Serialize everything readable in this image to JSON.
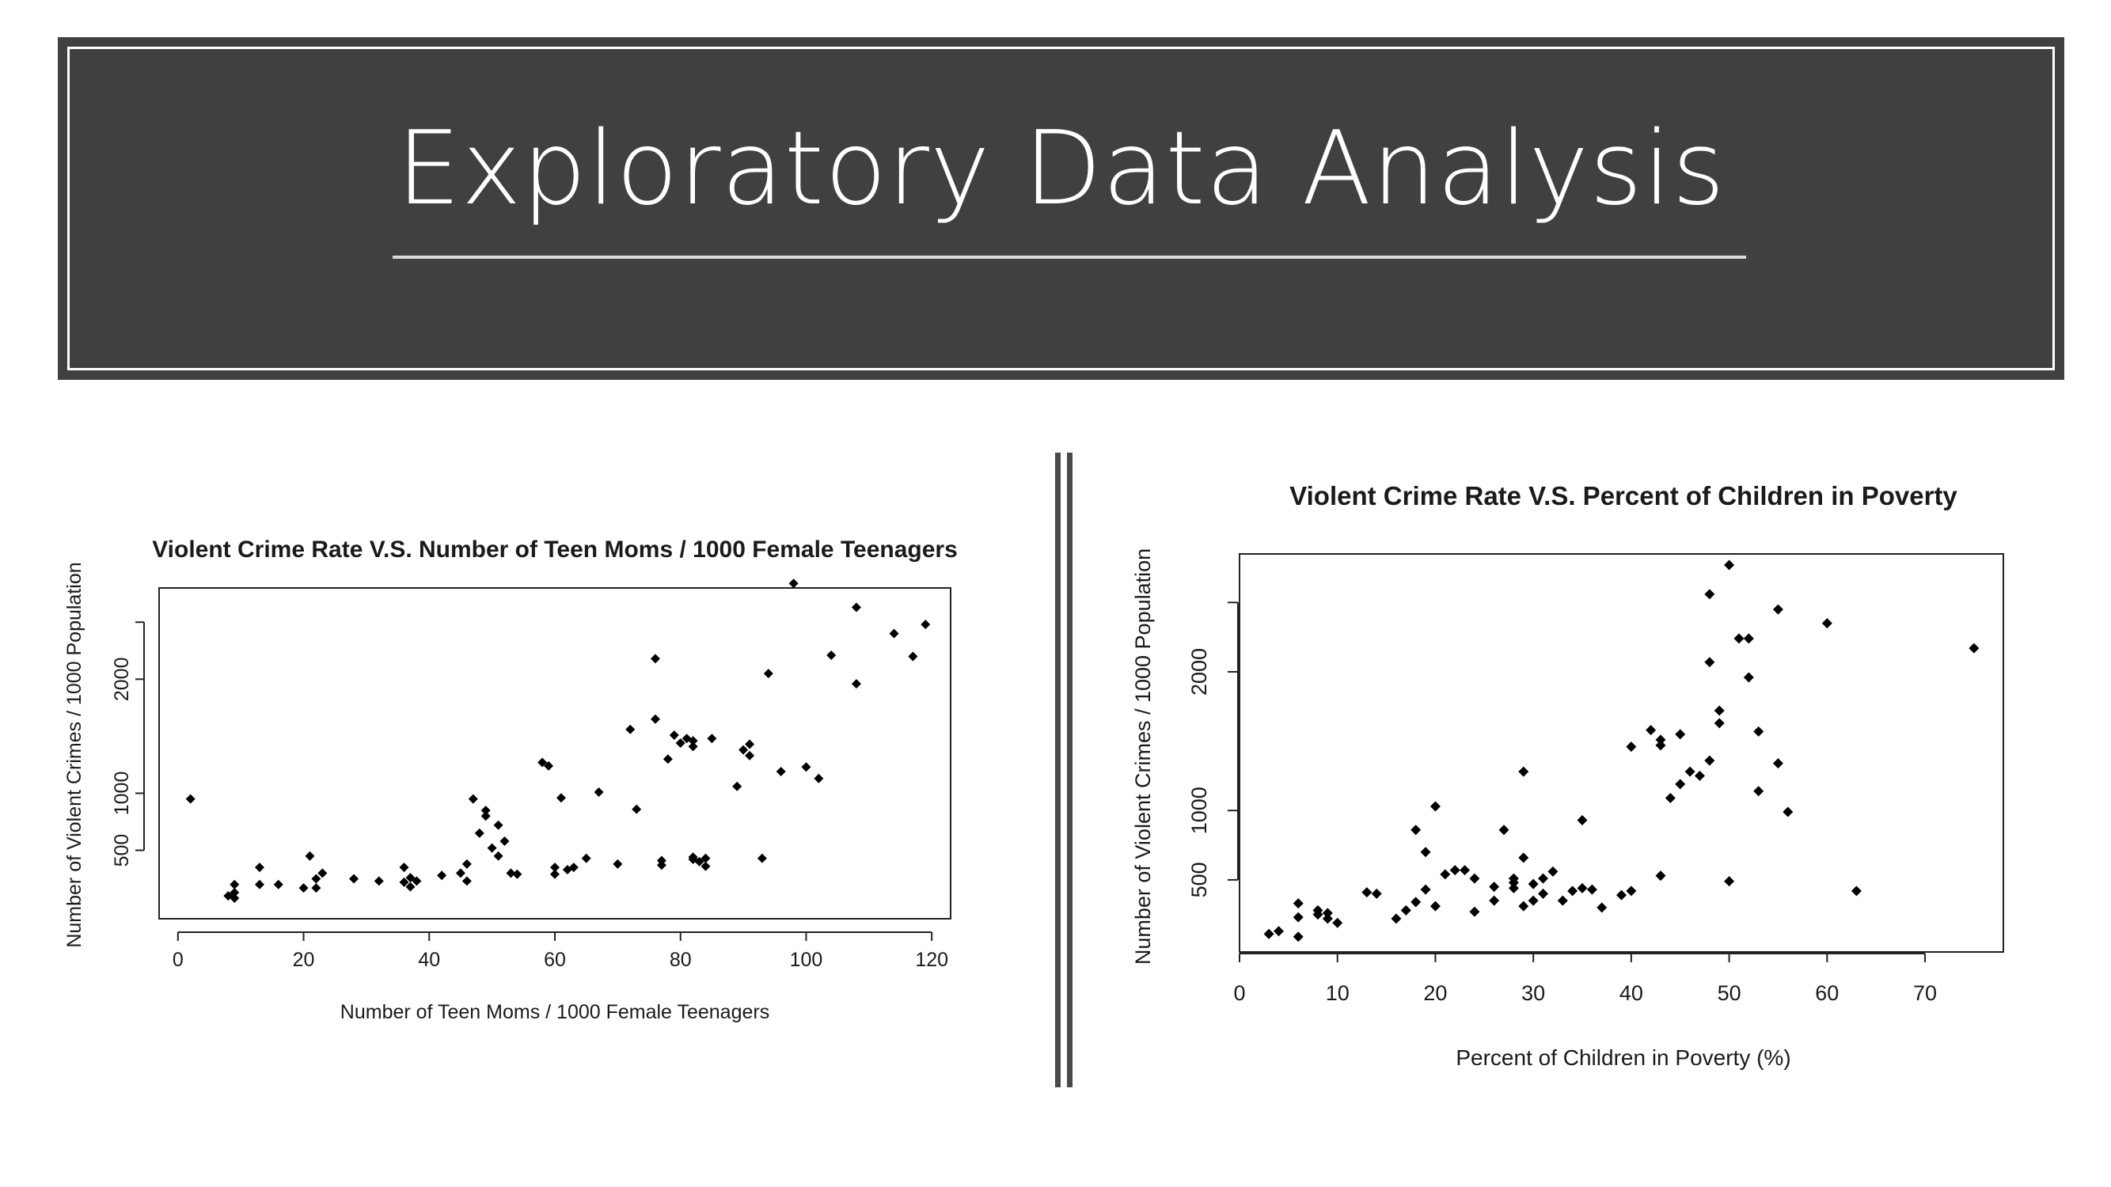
{
  "slide": {
    "title": "Exploratory Data Analysis"
  },
  "colors": {
    "banner": "#404040",
    "banner_frame": "#ffffff",
    "rule": "#d9d9d9",
    "points": "#000000"
  },
  "chart_data": [
    {
      "type": "scatter",
      "title": "Violent Crime Rate V.S. Number of Teen Moms / 1000 Female Teenagers",
      "xlabel": "Number of Teen Moms / 1000 Female Teenagers",
      "ylabel": "Number of Violent Crimes / 1000 Population",
      "xlim": [
        -3,
        123
      ],
      "ylim": [
        -100,
        2800
      ],
      "xticks": [
        0,
        20,
        40,
        60,
        80,
        100,
        120
      ],
      "yticks": [
        500,
        1000,
        2000
      ],
      "yticks_unlabeled": [
        2500
      ],
      "grid": false,
      "points": [
        [
          2,
          950
        ],
        [
          8,
          100
        ],
        [
          9,
          130
        ],
        [
          9,
          80
        ],
        [
          9,
          200
        ],
        [
          13,
          200
        ],
        [
          13,
          350
        ],
        [
          16,
          200
        ],
        [
          20,
          170
        ],
        [
          21,
          450
        ],
        [
          22,
          250
        ],
        [
          22,
          170
        ],
        [
          23,
          300
        ],
        [
          28,
          250
        ],
        [
          32,
          230
        ],
        [
          36,
          350
        ],
        [
          36,
          220
        ],
        [
          37,
          180
        ],
        [
          37,
          260
        ],
        [
          38,
          230
        ],
        [
          42,
          280
        ],
        [
          45,
          300
        ],
        [
          46,
          230
        ],
        [
          46,
          380
        ],
        [
          47,
          950
        ],
        [
          48,
          650
        ],
        [
          49,
          800
        ],
        [
          49,
          850
        ],
        [
          50,
          520
        ],
        [
          51,
          720
        ],
        [
          51,
          450
        ],
        [
          52,
          580
        ],
        [
          53,
          300
        ],
        [
          54,
          290
        ],
        [
          58,
          1270
        ],
        [
          59,
          1240
        ],
        [
          60,
          350
        ],
        [
          60,
          290
        ],
        [
          61,
          960
        ],
        [
          62,
          330
        ],
        [
          63,
          350
        ],
        [
          65,
          430
        ],
        [
          67,
          1010
        ],
        [
          70,
          380
        ],
        [
          72,
          1560
        ],
        [
          73,
          860
        ],
        [
          76,
          1650
        ],
        [
          76,
          2180
        ],
        [
          77,
          370
        ],
        [
          77,
          410
        ],
        [
          78,
          1300
        ],
        [
          79,
          1510
        ],
        [
          80,
          1440
        ],
        [
          81,
          1480
        ],
        [
          82,
          1460
        ],
        [
          82,
          1410
        ],
        [
          82,
          420
        ],
        [
          82,
          440
        ],
        [
          83,
          400
        ],
        [
          84,
          360
        ],
        [
          84,
          430
        ],
        [
          85,
          1480
        ],
        [
          89,
          1060
        ],
        [
          90,
          1380
        ],
        [
          91,
          1430
        ],
        [
          91,
          1330
        ],
        [
          93,
          430
        ],
        [
          94,
          2050
        ],
        [
          96,
          1190
        ],
        [
          98,
          2840
        ],
        [
          100,
          1230
        ],
        [
          102,
          1130
        ],
        [
          104,
          2210
        ],
        [
          108,
          1960
        ],
        [
          108,
          2630
        ],
        [
          114,
          2400
        ],
        [
          117,
          2200
        ],
        [
          119,
          2480
        ]
      ]
    },
    {
      "type": "scatter",
      "title": "Violent Crime Rate V.S. Percent of Children in Poverty",
      "xlabel": "Percent of Children in Poverty (%)",
      "ylabel": "Number of Violent Crimes / 1000 Population",
      "xlim": [
        0,
        78
      ],
      "ylim": [
        -20,
        2850
      ],
      "xticks": [
        0,
        10,
        20,
        30,
        40,
        50,
        60,
        70
      ],
      "yticks": [
        500,
        1000,
        2000
      ],
      "yticks_unlabeled": [
        2500
      ],
      "grid": false,
      "points": [
        [
          3,
          110
        ],
        [
          4,
          130
        ],
        [
          6,
          330
        ],
        [
          6,
          230
        ],
        [
          6,
          90
        ],
        [
          8,
          280
        ],
        [
          8,
          250
        ],
        [
          9,
          260
        ],
        [
          9,
          220
        ],
        [
          10,
          190
        ],
        [
          13,
          410
        ],
        [
          14,
          400
        ],
        [
          16,
          220
        ],
        [
          17,
          280
        ],
        [
          18,
          860
        ],
        [
          18,
          340
        ],
        [
          19,
          430
        ],
        [
          19,
          700
        ],
        [
          20,
          1030
        ],
        [
          20,
          310
        ],
        [
          21,
          540
        ],
        [
          22,
          570
        ],
        [
          23,
          570
        ],
        [
          24,
          510
        ],
        [
          24,
          270
        ],
        [
          26,
          450
        ],
        [
          26,
          350
        ],
        [
          27,
          860
        ],
        [
          28,
          510
        ],
        [
          28,
          480
        ],
        [
          28,
          440
        ],
        [
          29,
          310
        ],
        [
          29,
          1280
        ],
        [
          29,
          660
        ],
        [
          30,
          470
        ],
        [
          30,
          350
        ],
        [
          31,
          510
        ],
        [
          31,
          400
        ],
        [
          32,
          560
        ],
        [
          33,
          350
        ],
        [
          34,
          420
        ],
        [
          35,
          930
        ],
        [
          35,
          440
        ],
        [
          36,
          430
        ],
        [
          37,
          300
        ],
        [
          39,
          390
        ],
        [
          40,
          420
        ],
        [
          40,
          1460
        ],
        [
          42,
          1580
        ],
        [
          43,
          1470
        ],
        [
          43,
          1510
        ],
        [
          43,
          530
        ],
        [
          44,
          1090
        ],
        [
          45,
          1190
        ],
        [
          45,
          1550
        ],
        [
          46,
          1280
        ],
        [
          47,
          1250
        ],
        [
          48,
          1360
        ],
        [
          48,
          2560
        ],
        [
          48,
          2070
        ],
        [
          49,
          1630
        ],
        [
          49,
          1720
        ],
        [
          50,
          2770
        ],
        [
          50,
          490
        ],
        [
          51,
          2240
        ],
        [
          52,
          2240
        ],
        [
          52,
          1960
        ],
        [
          53,
          1570
        ],
        [
          53,
          1140
        ],
        [
          55,
          2450
        ],
        [
          55,
          1340
        ],
        [
          56,
          990
        ],
        [
          60,
          2350
        ],
        [
          63,
          420
        ],
        [
          75,
          2170
        ]
      ]
    }
  ]
}
